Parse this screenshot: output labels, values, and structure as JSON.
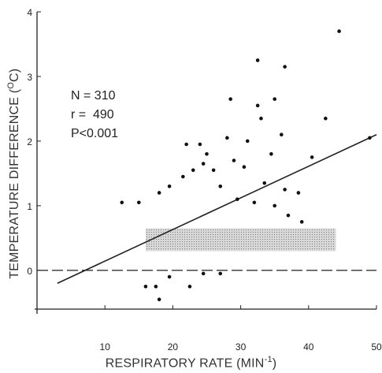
{
  "chart_data": {
    "type": "scatter",
    "xlabel_main": "RESPIRATORY RATE (MIN",
    "xlabel_sup": "-1",
    "xlabel_end": ")",
    "ylabel_main": "TEMPERATURE DIFFERENCE (",
    "ylabel_sup": "O",
    "ylabel_end": "C)",
    "xlim": [
      0,
      50
    ],
    "ylim": [
      -0.6,
      4
    ],
    "x_ticks": [
      10,
      20,
      30,
      40,
      50
    ],
    "x_tick_labels": [
      "10",
      "20",
      "30",
      "40",
      "50"
    ],
    "y_ticks": [
      0,
      1,
      2,
      3,
      4
    ],
    "y_tick_labels": [
      "0",
      "1",
      "2",
      "3",
      "4"
    ],
    "annotations": [
      "N = 310",
      "r =  490",
      "P<0.001"
    ],
    "regression_line": {
      "x": [
        3,
        50
      ],
      "y": [
        -0.2,
        2.1
      ]
    },
    "reference_band": {
      "x": [
        16,
        44
      ],
      "y": [
        0.3,
        0.65
      ]
    },
    "zero_line": {
      "y": 0,
      "style": "dashed"
    },
    "grid": false,
    "points": [
      {
        "x": 44.5,
        "y": 3.7
      },
      {
        "x": 32.5,
        "y": 3.25
      },
      {
        "x": 36.5,
        "y": 3.15
      },
      {
        "x": 28.5,
        "y": 2.65
      },
      {
        "x": 32.5,
        "y": 2.55
      },
      {
        "x": 35,
        "y": 2.65
      },
      {
        "x": 33,
        "y": 2.35
      },
      {
        "x": 42.5,
        "y": 2.35
      },
      {
        "x": 49,
        "y": 2.05
      },
      {
        "x": 36,
        "y": 2.1
      },
      {
        "x": 34.5,
        "y": 1.8
      },
      {
        "x": 40.5,
        "y": 1.75
      },
      {
        "x": 22,
        "y": 1.95
      },
      {
        "x": 24,
        "y": 1.95
      },
      {
        "x": 25,
        "y": 1.8
      },
      {
        "x": 28,
        "y": 2.05
      },
      {
        "x": 30.5,
        "y": 1.6
      },
      {
        "x": 26,
        "y": 1.55
      },
      {
        "x": 29,
        "y": 1.7
      },
      {
        "x": 31,
        "y": 2.0
      },
      {
        "x": 24.5,
        "y": 1.65
      },
      {
        "x": 33.5,
        "y": 1.35
      },
      {
        "x": 36.5,
        "y": 1.25
      },
      {
        "x": 38.5,
        "y": 1.2
      },
      {
        "x": 12.5,
        "y": 1.05
      },
      {
        "x": 15,
        "y": 1.05
      },
      {
        "x": 18,
        "y": 1.2
      },
      {
        "x": 19.5,
        "y": 1.3
      },
      {
        "x": 21.5,
        "y": 1.45
      },
      {
        "x": 23,
        "y": 1.55
      },
      {
        "x": 27,
        "y": 1.3
      },
      {
        "x": 29.5,
        "y": 1.1
      },
      {
        "x": 32,
        "y": 1.05
      },
      {
        "x": 35,
        "y": 1.0
      },
      {
        "x": 37,
        "y": 0.85
      },
      {
        "x": 39,
        "y": 0.75
      },
      {
        "x": 16,
        "y": -0.25
      },
      {
        "x": 17.5,
        "y": -0.25
      },
      {
        "x": 18,
        "y": -0.45
      },
      {
        "x": 22.5,
        "y": -0.25
      },
      {
        "x": 19.5,
        "y": -0.1
      },
      {
        "x": 24.5,
        "y": -0.05
      },
      {
        "x": 27,
        "y": -0.05
      }
    ]
  }
}
